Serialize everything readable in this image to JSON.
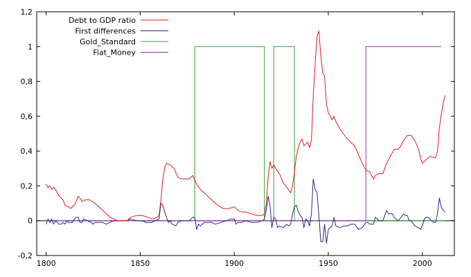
{
  "chart_data": {
    "type": "line",
    "title": "",
    "xlabel": "",
    "ylabel": "",
    "xlim": [
      1795,
      2017
    ],
    "ylim": [
      -0.2,
      1.2
    ],
    "x_ticks": [
      1800,
      1850,
      1900,
      1950,
      2000
    ],
    "x_tick_labels": [
      "1800",
      "1850",
      "1900",
      "1950",
      "2000"
    ],
    "y_ticks": [
      -0.2,
      0,
      0.2,
      0.4,
      0.6,
      0.8,
      1,
      1.2
    ],
    "y_tick_labels": [
      "-0,2",
      "0",
      "0,2",
      "0,4",
      "0,6",
      "0,8",
      "1",
      "1,2"
    ],
    "grid": false,
    "legend_position": "top-left",
    "series": [
      {
        "name": "Debt to GDP ratio",
        "color": "#e41a1c",
        "points": [
          [
            1800,
            0.21
          ],
          [
            1801,
            0.19
          ],
          [
            1802,
            0.2
          ],
          [
            1803,
            0.18
          ],
          [
            1804,
            0.19
          ],
          [
            1805,
            0.18
          ],
          [
            1806,
            0.16
          ],
          [
            1807,
            0.14
          ],
          [
            1808,
            0.13
          ],
          [
            1809,
            0.12
          ],
          [
            1810,
            0.09
          ],
          [
            1812,
            0.08
          ],
          [
            1813,
            0.07
          ],
          [
            1815,
            0.09
          ],
          [
            1816,
            0.11
          ],
          [
            1817,
            0.14
          ],
          [
            1818,
            0.13
          ],
          [
            1819,
            0.11
          ],
          [
            1821,
            0.12
          ],
          [
            1823,
            0.12
          ],
          [
            1826,
            0.1
          ],
          [
            1828,
            0.08
          ],
          [
            1830,
            0.06
          ],
          [
            1832,
            0.04
          ],
          [
            1834,
            0.02
          ],
          [
            1836,
            0.01
          ],
          [
            1838,
            0.0
          ],
          [
            1840,
            0.0
          ],
          [
            1843,
            0.0
          ],
          [
            1845,
            0.02
          ],
          [
            1848,
            0.03
          ],
          [
            1851,
            0.03
          ],
          [
            1854,
            0.02
          ],
          [
            1857,
            0.01
          ],
          [
            1859,
            0.02
          ],
          [
            1860,
            0.03
          ],
          [
            1861,
            0.12
          ],
          [
            1862,
            0.24
          ],
          [
            1863,
            0.3
          ],
          [
            1864,
            0.33
          ],
          [
            1866,
            0.32
          ],
          [
            1868,
            0.3
          ],
          [
            1870,
            0.25
          ],
          [
            1872,
            0.24
          ],
          [
            1874,
            0.24
          ],
          [
            1876,
            0.24
          ],
          [
            1878,
            0.26
          ],
          [
            1880,
            0.21
          ],
          [
            1882,
            0.18
          ],
          [
            1885,
            0.15
          ],
          [
            1888,
            0.12
          ],
          [
            1891,
            0.09
          ],
          [
            1894,
            0.07
          ],
          [
            1897,
            0.07
          ],
          [
            1900,
            0.08
          ],
          [
            1902,
            0.06
          ],
          [
            1904,
            0.05
          ],
          [
            1906,
            0.05
          ],
          [
            1909,
            0.04
          ],
          [
            1912,
            0.03
          ],
          [
            1915,
            0.03
          ],
          [
            1916,
            0.04
          ],
          [
            1917,
            0.1
          ],
          [
            1918,
            0.25
          ],
          [
            1919,
            0.34
          ],
          [
            1920,
            0.3
          ],
          [
            1921,
            0.32
          ],
          [
            1922,
            0.3
          ],
          [
            1924,
            0.27
          ],
          [
            1926,
            0.22
          ],
          [
            1928,
            0.19
          ],
          [
            1930,
            0.16
          ],
          [
            1931,
            0.2
          ],
          [
            1932,
            0.28
          ],
          [
            1933,
            0.37
          ],
          [
            1934,
            0.42
          ],
          [
            1935,
            0.45
          ],
          [
            1936,
            0.47
          ],
          [
            1937,
            0.43
          ],
          [
            1938,
            0.44
          ],
          [
            1939,
            0.45
          ],
          [
            1940,
            0.42
          ],
          [
            1941,
            0.46
          ],
          [
            1942,
            0.72
          ],
          [
            1943,
            0.9
          ],
          [
            1944,
            1.06
          ],
          [
            1945,
            1.09
          ],
          [
            1946,
            0.95
          ],
          [
            1947,
            0.85
          ],
          [
            1948,
            0.83
          ],
          [
            1949,
            0.67
          ],
          [
            1950,
            0.62
          ],
          [
            1952,
            0.58
          ],
          [
            1953,
            0.6
          ],
          [
            1954,
            0.57
          ],
          [
            1956,
            0.53
          ],
          [
            1958,
            0.5
          ],
          [
            1960,
            0.47
          ],
          [
            1962,
            0.45
          ],
          [
            1964,
            0.43
          ],
          [
            1966,
            0.38
          ],
          [
            1968,
            0.33
          ],
          [
            1970,
            0.29
          ],
          [
            1972,
            0.28
          ],
          [
            1973,
            0.26
          ],
          [
            1974,
            0.24
          ],
          [
            1975,
            0.26
          ],
          [
            1977,
            0.27
          ],
          [
            1979,
            0.27
          ],
          [
            1981,
            0.33
          ],
          [
            1983,
            0.37
          ],
          [
            1985,
            0.41
          ],
          [
            1987,
            0.41
          ],
          [
            1988,
            0.42
          ],
          [
            1990,
            0.46
          ],
          [
            1992,
            0.49
          ],
          [
            1994,
            0.49
          ],
          [
            1996,
            0.46
          ],
          [
            1998,
            0.41
          ],
          [
            1999,
            0.36
          ],
          [
            2000,
            0.33
          ],
          [
            2002,
            0.35
          ],
          [
            2004,
            0.37
          ],
          [
            2007,
            0.36
          ],
          [
            2008,
            0.4
          ],
          [
            2009,
            0.53
          ],
          [
            2010,
            0.61
          ],
          [
            2011,
            0.67
          ],
          [
            2012,
            0.72
          ]
        ]
      },
      {
        "name": "First differences",
        "color": "#1f2a8a",
        "points": [
          [
            1800,
            -0.02
          ],
          [
            1801,
            0.01
          ],
          [
            1802,
            -0.01
          ],
          [
            1803,
            0.01
          ],
          [
            1804,
            -0.02
          ],
          [
            1805,
            0.0
          ],
          [
            1806,
            -0.01
          ],
          [
            1807,
            -0.02
          ],
          [
            1808,
            -0.02
          ],
          [
            1809,
            -0.01
          ],
          [
            1810,
            -0.02
          ],
          [
            1811,
            0.0
          ],
          [
            1812,
            -0.01
          ],
          [
            1814,
            -0.01
          ],
          [
            1815,
            0.01
          ],
          [
            1816,
            0.02
          ],
          [
            1817,
            0.02
          ],
          [
            1818,
            -0.01
          ],
          [
            1819,
            -0.01
          ],
          [
            1820,
            0.01
          ],
          [
            1822,
            0.0
          ],
          [
            1824,
            -0.01
          ],
          [
            1825,
            -0.02
          ],
          [
            1826,
            -0.01
          ],
          [
            1828,
            -0.01
          ],
          [
            1830,
            -0.01
          ],
          [
            1832,
            -0.02
          ],
          [
            1834,
            -0.01
          ],
          [
            1836,
            0.0
          ],
          [
            1840,
            0.0
          ],
          [
            1843,
            0.0
          ],
          [
            1845,
            0.01
          ],
          [
            1848,
            0.0
          ],
          [
            1851,
            0.0
          ],
          [
            1853,
            -0.01
          ],
          [
            1856,
            -0.01
          ],
          [
            1858,
            0.0
          ],
          [
            1860,
            0.01
          ],
          [
            1861,
            0.1
          ],
          [
            1862,
            0.09
          ],
          [
            1863,
            0.05
          ],
          [
            1864,
            0.02
          ],
          [
            1865,
            -0.01
          ],
          [
            1866,
            0.0
          ],
          [
            1867,
            -0.02
          ],
          [
            1869,
            -0.03
          ],
          [
            1870,
            -0.01
          ],
          [
            1872,
            0.0
          ],
          [
            1874,
            0.0
          ],
          [
            1876,
            0.0
          ],
          [
            1878,
            0.02
          ],
          [
            1879,
            0.02
          ],
          [
            1880,
            -0.05
          ],
          [
            1881,
            -0.02
          ],
          [
            1882,
            -0.03
          ],
          [
            1884,
            -0.01
          ],
          [
            1886,
            -0.01
          ],
          [
            1888,
            -0.01
          ],
          [
            1890,
            -0.02
          ],
          [
            1893,
            -0.01
          ],
          [
            1896,
            0.0
          ],
          [
            1898,
            0.01
          ],
          [
            1900,
            0.01
          ],
          [
            1901,
            -0.02
          ],
          [
            1902,
            -0.01
          ],
          [
            1904,
            -0.01
          ],
          [
            1906,
            0.0
          ],
          [
            1909,
            -0.01
          ],
          [
            1912,
            -0.01
          ],
          [
            1915,
            0.0
          ],
          [
            1916,
            0.01
          ],
          [
            1917,
            0.06
          ],
          [
            1918,
            0.14
          ],
          [
            1919,
            0.09
          ],
          [
            1920,
            -0.04
          ],
          [
            1921,
            0.02
          ],
          [
            1922,
            0.01
          ],
          [
            1923,
            -0.04
          ],
          [
            1924,
            -0.03
          ],
          [
            1926,
            -0.04
          ],
          [
            1928,
            -0.02
          ],
          [
            1929,
            -0.03
          ],
          [
            1930,
            -0.02
          ],
          [
            1931,
            0.04
          ],
          [
            1932,
            0.08
          ],
          [
            1933,
            0.09
          ],
          [
            1934,
            0.05
          ],
          [
            1935,
            0.03
          ],
          [
            1936,
            0.02
          ],
          [
            1937,
            -0.04
          ],
          [
            1938,
            0.01
          ],
          [
            1939,
            0.0
          ],
          [
            1940,
            -0.03
          ],
          [
            1941,
            0.04
          ],
          [
            1942,
            0.24
          ],
          [
            1943,
            0.18
          ],
          [
            1944,
            0.16
          ],
          [
            1945,
            0.03
          ],
          [
            1946,
            -0.12
          ],
          [
            1947,
            -0.12
          ],
          [
            1948,
            -0.02
          ],
          [
            1949,
            -0.13
          ],
          [
            1950,
            -0.05
          ],
          [
            1952,
            -0.03
          ],
          [
            1953,
            0.02
          ],
          [
            1954,
            -0.03
          ],
          [
            1956,
            -0.04
          ],
          [
            1958,
            -0.03
          ],
          [
            1960,
            -0.03
          ],
          [
            1962,
            -0.02
          ],
          [
            1964,
            -0.02
          ],
          [
            1966,
            -0.05
          ],
          [
            1968,
            -0.04
          ],
          [
            1970,
            -0.01
          ],
          [
            1971,
            -0.01
          ],
          [
            1972,
            -0.02
          ],
          [
            1973,
            -0.02
          ],
          [
            1974,
            -0.02
          ],
          [
            1975,
            0.02
          ],
          [
            1976,
            0.01
          ],
          [
            1977,
            0.0
          ],
          [
            1978,
            0.0
          ],
          [
            1979,
            0.0
          ],
          [
            1980,
            0.03
          ],
          [
            1981,
            0.06
          ],
          [
            1982,
            0.04
          ],
          [
            1983,
            0.04
          ],
          [
            1984,
            0.04
          ],
          [
            1985,
            0.02
          ],
          [
            1987,
            0.0
          ],
          [
            1988,
            0.01
          ],
          [
            1990,
            0.04
          ],
          [
            1991,
            0.03
          ],
          [
            1992,
            0.03
          ],
          [
            1993,
            0.0
          ],
          [
            1994,
            0.0
          ],
          [
            1996,
            -0.03
          ],
          [
            1998,
            -0.04
          ],
          [
            1999,
            -0.05
          ],
          [
            2000,
            -0.03
          ],
          [
            2001,
            0.01
          ],
          [
            2002,
            0.02
          ],
          [
            2003,
            0.02
          ],
          [
            2004,
            0.01
          ],
          [
            2005,
            0.0
          ],
          [
            2006,
            -0.01
          ],
          [
            2007,
            -0.01
          ],
          [
            2008,
            0.04
          ],
          [
            2009,
            0.13
          ],
          [
            2010,
            0.08
          ],
          [
            2011,
            0.06
          ],
          [
            2012,
            0.05
          ]
        ]
      },
      {
        "name": "Gold_Standard",
        "color": "#33a02c",
        "points": [
          [
            1800,
            0
          ],
          [
            1879,
            0
          ],
          [
            1879,
            1
          ],
          [
            1916,
            1
          ],
          [
            1916,
            0
          ],
          [
            1921,
            0
          ],
          [
            1921,
            1
          ],
          [
            1932,
            1
          ],
          [
            1932,
            0
          ],
          [
            2012,
            0
          ]
        ]
      },
      {
        "name": "Fiat_Money",
        "color": "#9b30b5",
        "points": [
          [
            1800,
            0
          ],
          [
            1970,
            0
          ],
          [
            1970,
            1
          ],
          [
            2010,
            1
          ]
        ]
      }
    ]
  }
}
